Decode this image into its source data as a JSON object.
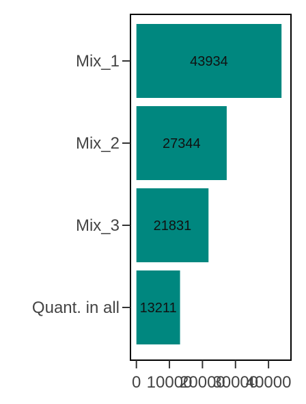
{
  "chart_data": {
    "type": "bar",
    "orientation": "horizontal",
    "categories": [
      "Mix_1",
      "Mix_2",
      "Mix_3",
      "Quant. in all"
    ],
    "values": [
      43934,
      27344,
      21831,
      13211
    ],
    "data_labels": [
      "43934",
      "27344",
      "21831",
      "13211"
    ],
    "x_ticks": [
      0,
      10000,
      20000,
      30000,
      40000
    ],
    "x_tick_labels": [
      "0",
      "10000",
      "20000",
      "30000",
      "40000"
    ],
    "xlim": [
      -1800,
      46800
    ],
    "title": "",
    "xlabel": "",
    "ylabel": "",
    "grid": false,
    "legend": "none",
    "bar_color": "#00877f"
  }
}
